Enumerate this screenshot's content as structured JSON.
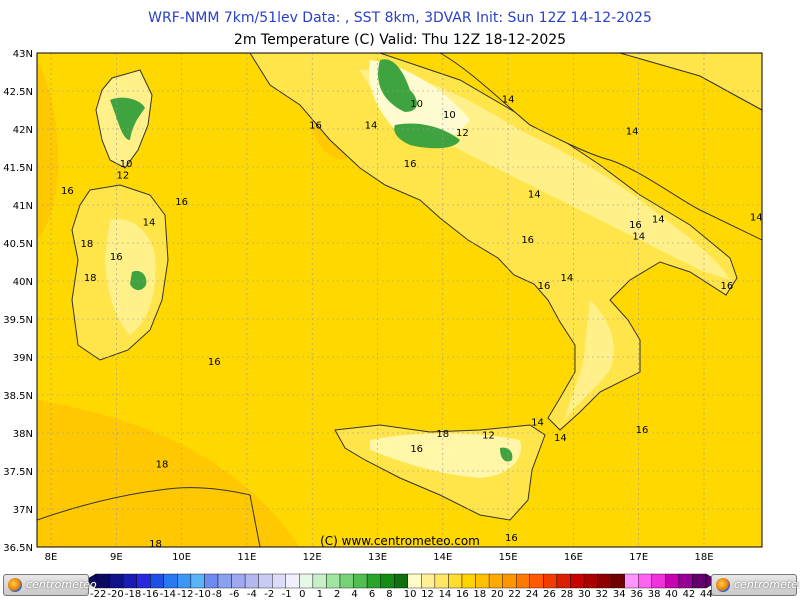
{
  "header": {
    "line1": "WRF-NMM 7km/51lev   Data: , SST 8km, 3DVAR   Init: Sun 12Z 14-12-2025",
    "line2": "2m Temperature (C)  Valid: Thu 12Z 18-12-2025"
  },
  "axes": {
    "lat_labels": [
      "43N",
      "42.5N",
      "42N",
      "41.5N",
      "41N",
      "40.5N",
      "40N",
      "39.5N",
      "39N",
      "38.5N",
      "38N",
      "37.5N",
      "37N",
      "36.5N"
    ],
    "lon_labels": [
      "8E",
      "9E",
      "10E",
      "11E",
      "12E",
      "13E",
      "14E",
      "15E",
      "16E",
      "17E",
      "18E"
    ]
  },
  "contour_labels": [
    {
      "text": "10",
      "lon": 9.15,
      "lat": 41.55
    },
    {
      "text": "12",
      "lon": 9.1,
      "lat": 41.4
    },
    {
      "text": "16",
      "lon": 8.25,
      "lat": 41.2
    },
    {
      "text": "16",
      "lon": 10.0,
      "lat": 41.05
    },
    {
      "text": "14",
      "lon": 9.5,
      "lat": 40.78
    },
    {
      "text": "18",
      "lon": 8.55,
      "lat": 40.5
    },
    {
      "text": "16",
      "lon": 9.0,
      "lat": 40.33
    },
    {
      "text": "18",
      "lon": 8.6,
      "lat": 40.05
    },
    {
      "text": "16",
      "lon": 10.5,
      "lat": 38.95
    },
    {
      "text": "18",
      "lon": 9.7,
      "lat": 37.6
    },
    {
      "text": "18",
      "lon": 9.6,
      "lat": 36.55
    },
    {
      "text": "16",
      "lon": 12.05,
      "lat": 42.06
    },
    {
      "text": "14",
      "lon": 12.9,
      "lat": 42.06
    },
    {
      "text": "10",
      "lon": 13.6,
      "lat": 42.34
    },
    {
      "text": "10",
      "lon": 14.1,
      "lat": 42.2
    },
    {
      "text": "12",
      "lon": 14.3,
      "lat": 41.96
    },
    {
      "text": "14",
      "lon": 15.0,
      "lat": 42.4
    },
    {
      "text": "14",
      "lon": 16.9,
      "lat": 41.98
    },
    {
      "text": "16",
      "lon": 13.5,
      "lat": 41.55
    },
    {
      "text": "14",
      "lon": 15.4,
      "lat": 41.15
    },
    {
      "text": "16",
      "lon": 16.95,
      "lat": 40.75
    },
    {
      "text": "14",
      "lon": 17.3,
      "lat": 40.82
    },
    {
      "text": "14",
      "lon": 18.8,
      "lat": 40.85
    },
    {
      "text": "14",
      "lon": 17.0,
      "lat": 40.6
    },
    {
      "text": "16",
      "lon": 15.3,
      "lat": 40.55
    },
    {
      "text": "14",
      "lon": 15.9,
      "lat": 40.05
    },
    {
      "text": "16",
      "lon": 15.55,
      "lat": 39.95
    },
    {
      "text": "16",
      "lon": 18.35,
      "lat": 39.95
    },
    {
      "text": "14",
      "lon": 15.45,
      "lat": 38.15
    },
    {
      "text": "14",
      "lon": 15.8,
      "lat": 37.95
    },
    {
      "text": "16",
      "lon": 17.05,
      "lat": 38.05
    },
    {
      "text": "12",
      "lon": 14.7,
      "lat": 37.98
    },
    {
      "text": "18",
      "lon": 14.0,
      "lat": 38.0
    },
    {
      "text": "16",
      "lon": 13.6,
      "lat": 37.8
    },
    {
      "text": "16",
      "lon": 15.05,
      "lat": 36.63
    }
  ],
  "copyright": "(C) www.centrometeo.com",
  "legend": {
    "colors": [
      "#0a0a60",
      "#10108a",
      "#1a1ab4",
      "#2828dc",
      "#1e50e6",
      "#2878f0",
      "#3c96f5",
      "#5ab4f8",
      "#6e8cf0",
      "#8ca0f0",
      "#a0a8f0",
      "#b4b8f0",
      "#c8ccf4",
      "#dcdcf8",
      "#f0f0fc",
      "#e6f8e6",
      "#c8f0c8",
      "#a0e6a0",
      "#78d278",
      "#50be50",
      "#2aa42a",
      "#148c14",
      "#107010",
      "#fffcc8",
      "#fff096",
      "#ffe664",
      "#ffdc32",
      "#ffd200",
      "#ffc000",
      "#ffaa00",
      "#ff9600",
      "#ff7800",
      "#ff5a00",
      "#f03c00",
      "#dc1e00",
      "#c80000",
      "#aa0000",
      "#8c0000",
      "#6e0000",
      "#ff96ff",
      "#ff64f0",
      "#f032dc",
      "#c800b4",
      "#960096",
      "#64006e"
    ],
    "ticks": [
      "-22",
      "-20",
      "-18",
      "-16",
      "-14",
      "-12",
      "-10",
      "-8",
      "-6",
      "-4",
      "-2",
      "-1",
      "0",
      "1",
      "2",
      "4",
      "6",
      "8",
      "10",
      "12",
      "14",
      "16",
      "18",
      "20",
      "22",
      "24",
      "26",
      "28",
      "30",
      "32",
      "34",
      "36",
      "38",
      "40",
      "42",
      "44"
    ],
    "logo_text": "centrometeo"
  },
  "colors": {
    "sea": "#ffd800",
    "warm_band": "#ffc800",
    "land_16": "#ffd800",
    "land_14": "#ffeb60",
    "land_12": "#fff6a8",
    "land_10": "#fffbd0",
    "land_8": "#3fa43f",
    "land_6": "#148c14",
    "title_blue": "#2a40c8"
  }
}
